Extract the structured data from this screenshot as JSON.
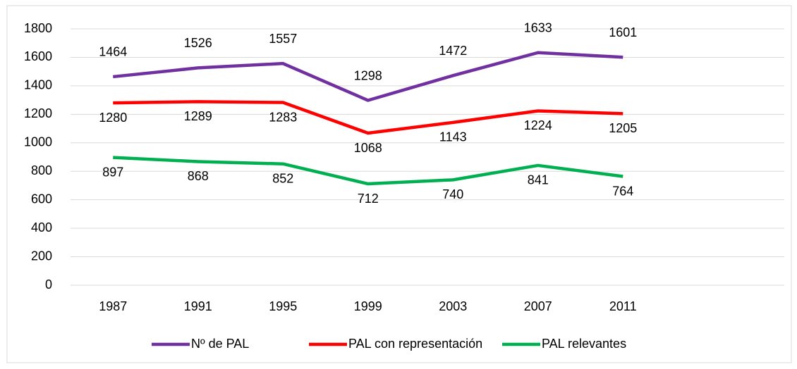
{
  "chart_data": {
    "type": "line",
    "categories": [
      "1987",
      "1991",
      "1995",
      "1999",
      "2003",
      "2007",
      "2011"
    ],
    "series": [
      {
        "name": "Nº de PAL",
        "color": "#7030a0",
        "values": [
          1464,
          1526,
          1557,
          1298,
          1472,
          1633,
          1601
        ]
      },
      {
        "name": "PAL con representación",
        "color": "#ff0000",
        "values": [
          1280,
          1289,
          1283,
          1068,
          1143,
          1224,
          1205
        ]
      },
      {
        "name": "PAL relevantes",
        "color": "#00b050",
        "values": [
          897,
          868,
          852,
          712,
          740,
          841,
          764
        ]
      }
    ],
    "ylim": [
      0,
      1800
    ],
    "yticks": [
      0,
      200,
      400,
      600,
      800,
      1000,
      1200,
      1400,
      1600,
      1800
    ],
    "grid": true,
    "legend": "bottom"
  }
}
